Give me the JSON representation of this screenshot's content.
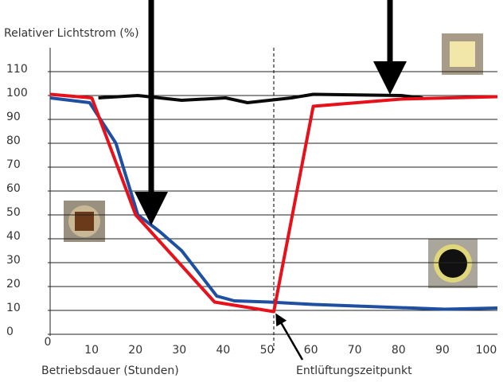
{
  "chart_data": {
    "type": "line",
    "y_label": "Relativer Lichtstrom (%)",
    "x_label": "Betriebsdauer (Stunden)",
    "annotation": "Entlüftungszeitpunkt",
    "xlim": [
      0,
      102
    ],
    "ylim": [
      0,
      120
    ],
    "xticks": [
      0,
      10,
      20,
      30,
      40,
      50,
      60,
      70,
      80,
      90,
      100
    ],
    "yticks": [
      0,
      10,
      20,
      30,
      40,
      50,
      60,
      70,
      80,
      90,
      100,
      110
    ],
    "grid": true,
    "vline_x": 51,
    "series": [
      {
        "color": "#0a0a0a",
        "x": [
          11,
          20,
          25,
          30,
          40,
          45,
          50,
          55,
          60,
          80,
          85
        ],
        "values": [
          99,
          100,
          99,
          98,
          99,
          97,
          98,
          99,
          100.5,
          100,
          99
        ]
      },
      {
        "color": "#1f4fa0",
        "x": [
          0,
          9,
          15,
          20,
          25,
          30,
          38,
          42,
          50,
          60,
          90,
          102
        ],
        "values": [
          99,
          97,
          80,
          50,
          43,
          35,
          16,
          14,
          13.5,
          12.5,
          10.5,
          11
        ]
      },
      {
        "color": "#e8101a",
        "x": [
          0,
          9.5,
          19.5,
          37.5,
          51,
          60,
          80,
          102
        ],
        "values": [
          100.5,
          99,
          50,
          13.5,
          9.5,
          95.5,
          98.5,
          99.5
        ]
      }
    ]
  }
}
